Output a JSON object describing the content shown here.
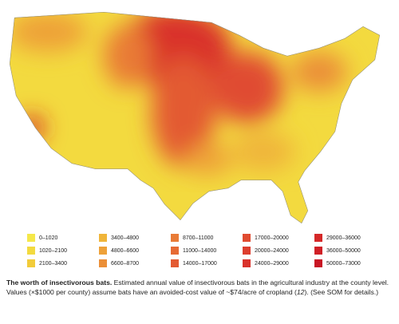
{
  "legend": {
    "items": [
      {
        "label": "0–1020",
        "color": "#f5e84a"
      },
      {
        "label": "1020–2100",
        "color": "#f3da3f"
      },
      {
        "label": "2100–3400",
        "color": "#f2cc3a"
      },
      {
        "label": "3400–4800",
        "color": "#f0b53a"
      },
      {
        "label": "4800–6600",
        "color": "#eea139"
      },
      {
        "label": "6600–8700",
        "color": "#eb8f38"
      },
      {
        "label": "8700–11000",
        "color": "#e97b36"
      },
      {
        "label": "11000–14000",
        "color": "#e66a34"
      },
      {
        "label": "14000–17000",
        "color": "#e35a32"
      },
      {
        "label": "17000–20000",
        "color": "#e04b30"
      },
      {
        "label": "20000–24000",
        "color": "#dd3e2e"
      },
      {
        "label": "24000–29000",
        "color": "#d9322b"
      },
      {
        "label": "29000–36000",
        "color": "#d52828"
      },
      {
        "label": "36000–50000",
        "color": "#d01f26"
      },
      {
        "label": "50000–73000",
        "color": "#c81624"
      }
    ]
  },
  "caption": {
    "title": "The worth of insectivorous bats.",
    "text_before": "Estimated annual value of insectivorous bats in the agricultural industry at the county level. Values (×$1000 per county) assume bats have an avoided-cost value of ~$74/acre of cropland (",
    "citation": "12",
    "text_after": "). (See SOM for details.)"
  }
}
